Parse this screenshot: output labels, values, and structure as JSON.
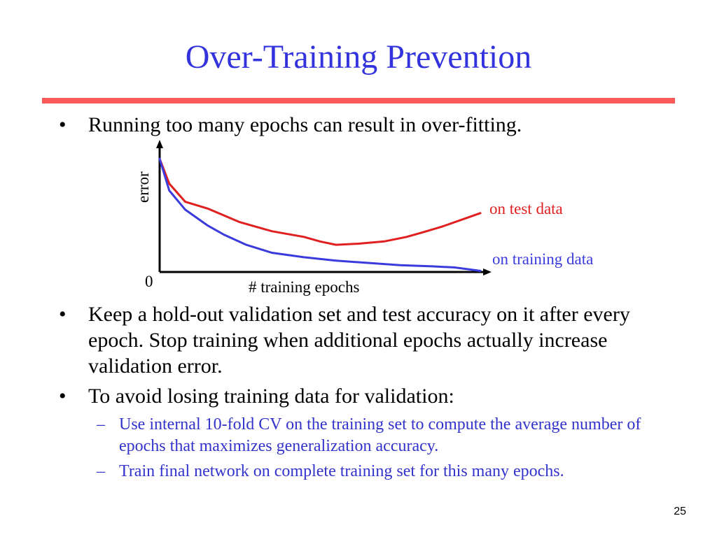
{
  "slide": {
    "title": "Over-Training Prevention",
    "page_number": "25"
  },
  "colors": {
    "title": "#3333dd",
    "rule": "#ff5a5a",
    "sub": "#3333cc",
    "test": "#e02020",
    "train": "#3b3bdd"
  },
  "bullets": [
    {
      "text": "Running too many epochs can result in over-fitting."
    },
    {
      "text": "Keep a hold-out validation set and test accuracy on it after every epoch. Stop training when additional epochs actually increase validation error."
    },
    {
      "text": "To avoid losing training data for validation:",
      "sub": [
        {
          "text": "Use internal 10-fold CV on the training set to compute the average number of epochs that maximizes generalization accuracy."
        },
        {
          "text": "Train final network on complete training set for this many epochs."
        }
      ]
    }
  ],
  "bullet_glyph": "•",
  "dash_glyph": "–",
  "chart_data": {
    "type": "line",
    "title": "",
    "xlabel": "# training epochs",
    "ylabel": "error",
    "origin_label": "0",
    "xlim": [
      0,
      100
    ],
    "ylim": [
      0,
      100
    ],
    "grid": false,
    "series": [
      {
        "name": "on test data",
        "color": "#e02020",
        "x": [
          0,
          3,
          8,
          15,
          25,
          35,
          45,
          50,
          55,
          62,
          70,
          77,
          82,
          88,
          100
        ],
        "y": [
          100,
          78,
          62,
          56,
          44,
          36,
          31,
          27,
          24,
          25,
          27,
          31,
          35,
          40,
          52
        ]
      },
      {
        "name": "on training data",
        "color": "#3b3bdd",
        "x": [
          0,
          3,
          8,
          15,
          20,
          27,
          35,
          45,
          55,
          65,
          75,
          85,
          92,
          100
        ],
        "y": [
          100,
          72,
          55,
          41,
          33,
          24,
          17,
          13,
          10,
          8,
          6,
          5,
          4,
          1
        ]
      }
    ]
  }
}
